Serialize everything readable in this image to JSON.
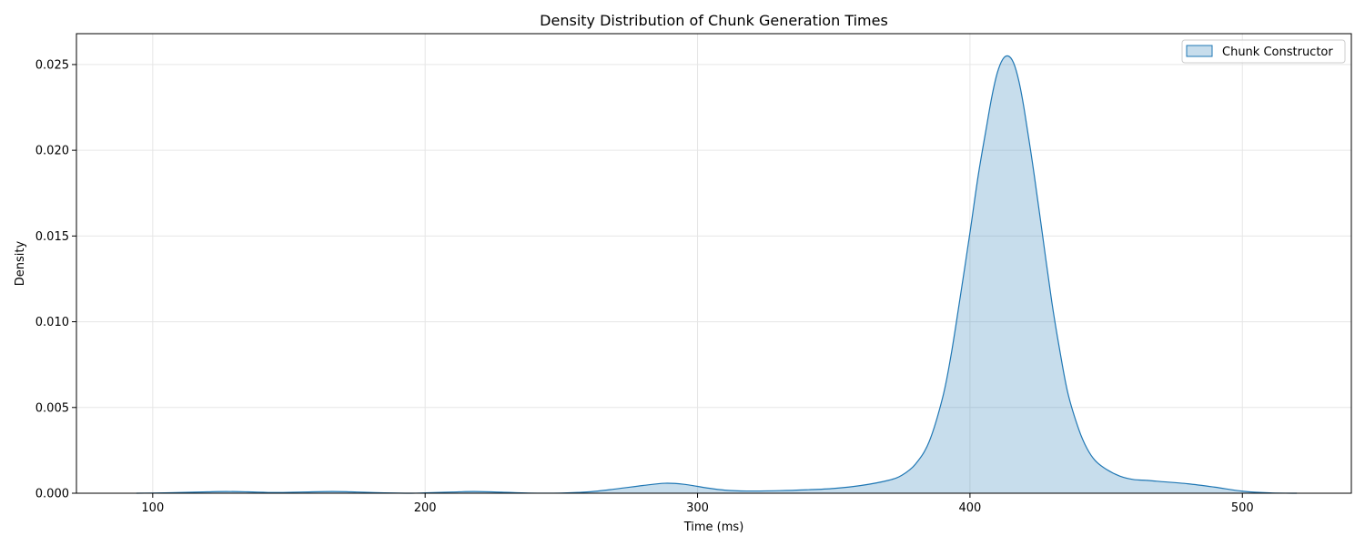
{
  "chart_data": {
    "type": "area",
    "title": "Density Distribution of Chunk Generation Times",
    "xlabel": "Time (ms)",
    "ylabel": "Density",
    "xlim": [
      72,
      540
    ],
    "ylim": [
      0,
      0.0268
    ],
    "x_ticks": [
      100,
      200,
      300,
      400,
      500
    ],
    "y_ticks": [
      0.0,
      0.005,
      0.01,
      0.015,
      0.02,
      0.025
    ],
    "x_tick_labels": [
      "100",
      "200",
      "300",
      "400",
      "500"
    ],
    "y_tick_labels": [
      "0.000",
      "0.005",
      "0.010",
      "0.015",
      "0.020",
      "0.025"
    ],
    "grid": true,
    "legend_position": "top-right",
    "colors": {
      "line": "#1f77b4",
      "fill": "#1f77b4",
      "fill_opacity": 0.25,
      "grid": "#e6e6e6"
    },
    "series": [
      {
        "name": "Chunk Constructor",
        "x": [
          94,
          100,
          110,
          120,
          127,
          135,
          145,
          155,
          166,
          175,
          185,
          195,
          200,
          210,
          218,
          228,
          238,
          250,
          260,
          270,
          280,
          288,
          295,
          303,
          310,
          318,
          330,
          340,
          350,
          360,
          370,
          375,
          380,
          385,
          390,
          393,
          396,
          400,
          403,
          406,
          408,
          410,
          412,
          414,
          416,
          418,
          420,
          423,
          426,
          430,
          433,
          436,
          440,
          443,
          446,
          450,
          455,
          460,
          465,
          470,
          480,
          490,
          500,
          510,
          520
        ],
        "y": [
          0.0,
          1e-05,
          4e-05,
          8e-05,
          0.0001,
          8e-05,
          4e-05,
          7e-05,
          0.0001,
          7e-05,
          2e-05,
          0.0,
          2e-05,
          7e-05,
          0.0001,
          6e-05,
          1e-05,
          1e-05,
          8e-05,
          0.00025,
          0.00045,
          0.00058,
          0.00052,
          0.00032,
          0.00018,
          0.00013,
          0.00015,
          0.0002,
          0.00028,
          0.00045,
          0.00075,
          0.00105,
          0.0017,
          0.003,
          0.0056,
          0.008,
          0.011,
          0.0152,
          0.0185,
          0.0213,
          0.0231,
          0.0245,
          0.0253,
          0.0255,
          0.0251,
          0.024,
          0.0223,
          0.0192,
          0.0158,
          0.0112,
          0.0083,
          0.0058,
          0.0037,
          0.0026,
          0.0019,
          0.0014,
          0.001,
          0.0008,
          0.00075,
          0.00068,
          0.00055,
          0.00035,
          0.00012,
          2e-05,
          0.0
        ]
      }
    ]
  }
}
